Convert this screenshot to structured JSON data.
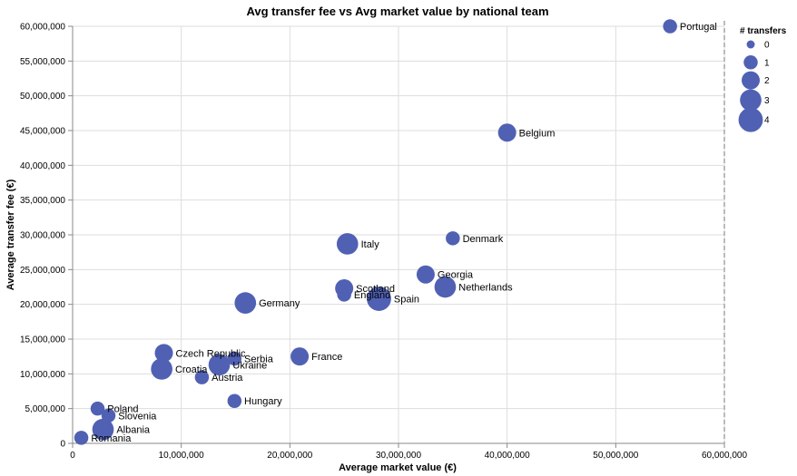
{
  "chart_data": {
    "type": "scatter",
    "title": "Avg transfer fee vs Avg market value by national team",
    "xlabel": "Average market value (€)",
    "ylabel": "Average transfer fee (€)",
    "xlim": [
      0,
      60000000
    ],
    "ylim": [
      0,
      60000000
    ],
    "x_ticks": [
      0,
      10000000,
      20000000,
      30000000,
      40000000,
      50000000,
      60000000
    ],
    "x_tick_labels": [
      "0",
      "10,000,000",
      "20,000,000",
      "30,000,000",
      "40,000,000",
      "50,000,000",
      "60,000,000"
    ],
    "y_ticks": [
      0,
      5000000,
      10000000,
      15000000,
      20000000,
      25000000,
      30000000,
      35000000,
      40000000,
      45000000,
      50000000,
      55000000,
      60000000
    ],
    "y_tick_labels": [
      "0",
      "5,000,000",
      "10,000,000",
      "15,000,000",
      "20,000,000",
      "25,000,000",
      "30,000,000",
      "35,000,000",
      "40,000,000",
      "45,000,000",
      "50,000,000",
      "55,000,000",
      "60,000,000"
    ],
    "grid": true,
    "size_legend": {
      "title": "# transfers",
      "position": "right",
      "values": [
        0,
        1,
        2,
        3,
        4
      ],
      "labels": [
        "0",
        "1",
        "2",
        "3",
        "4"
      ]
    },
    "point_color": "#5061b4",
    "points": [
      {
        "label": "Portugal",
        "x": 55000000,
        "y": 60000000,
        "transfers": 1
      },
      {
        "label": "Belgium",
        "x": 40000000,
        "y": 44700000,
        "transfers": 2
      },
      {
        "label": "Denmark",
        "x": 35000000,
        "y": 29500000,
        "transfers": 1
      },
      {
        "label": "Italy",
        "x": 25300000,
        "y": 28700000,
        "transfers": 3
      },
      {
        "label": "Georgia",
        "x": 32500000,
        "y": 24300000,
        "transfers": 2
      },
      {
        "label": "Netherlands",
        "x": 34300000,
        "y": 22500000,
        "transfers": 3
      },
      {
        "label": "Scotland",
        "x": 25000000,
        "y": 22300000,
        "transfers": 2
      },
      {
        "label": "England",
        "x": 25000000,
        "y": 21400000,
        "transfers": 1
      },
      {
        "label": "Spain",
        "x": 28200000,
        "y": 20800000,
        "transfers": 4
      },
      {
        "label": "Germany",
        "x": 15900000,
        "y": 20200000,
        "transfers": 3
      },
      {
        "label": "Czech Republic",
        "x": 8400000,
        "y": 13000000,
        "transfers": 2
      },
      {
        "label": "Serbia",
        "x": 14900000,
        "y": 12200000,
        "transfers": 1
      },
      {
        "label": "France",
        "x": 20900000,
        "y": 12500000,
        "transfers": 2
      },
      {
        "label": "Ukraine",
        "x": 13500000,
        "y": 11300000,
        "transfers": 3
      },
      {
        "label": "Croatia",
        "x": 8200000,
        "y": 10700000,
        "transfers": 3
      },
      {
        "label": "Austria",
        "x": 11900000,
        "y": 9500000,
        "transfers": 1
      },
      {
        "label": "Hungary",
        "x": 14900000,
        "y": 6100000,
        "transfers": 1
      },
      {
        "label": "Poland",
        "x": 2300000,
        "y": 5000000,
        "transfers": 1
      },
      {
        "label": "Slovenia",
        "x": 3300000,
        "y": 4000000,
        "transfers": 1
      },
      {
        "label": "Albania",
        "x": 2800000,
        "y": 2000000,
        "transfers": 3
      },
      {
        "label": "Romania",
        "x": 800000,
        "y": 800000,
        "transfers": 1
      }
    ]
  }
}
